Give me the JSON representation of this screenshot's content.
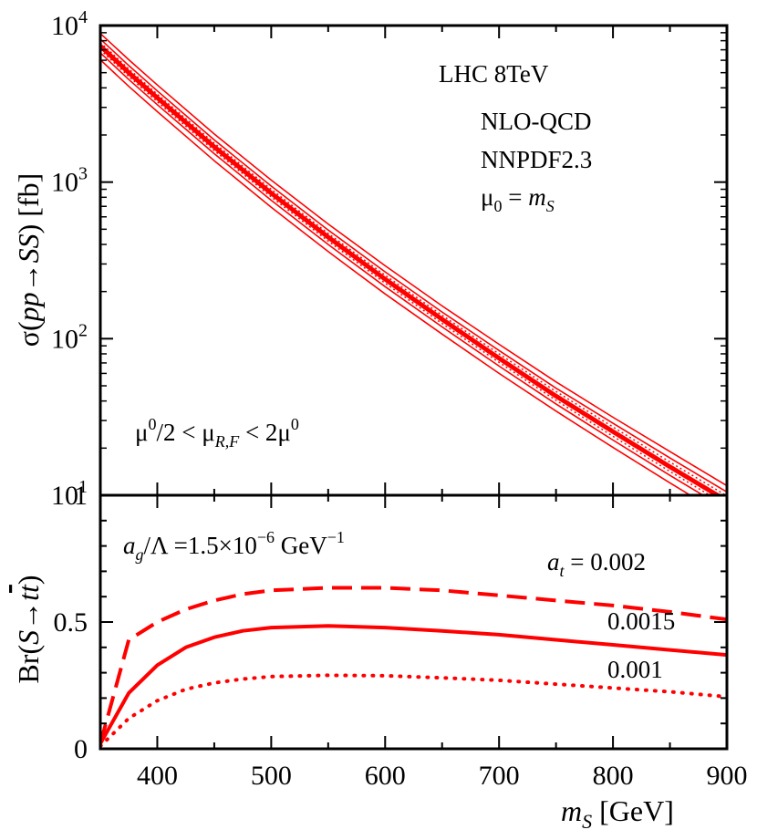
{
  "chart_data": [
    {
      "type": "line",
      "panel": "top",
      "yscale": "log",
      "xlim": [
        350,
        900
      ],
      "ylim": [
        10,
        10000
      ],
      "ylabel_parts": {
        "sigma": "σ(",
        "process": "pp→SS",
        "unit": ") [fb]"
      },
      "ytick_values": [
        10,
        100,
        1000,
        10000
      ],
      "ytick_exponents": [
        "1",
        "2",
        "3",
        "4"
      ],
      "ytick_base": "10",
      "annotations": {
        "collider": "LHC 8TeV",
        "order": "NLO-QCD",
        "pdf": "NNPDF2.3",
        "scale_mu": "μ",
        "scale_sub": "0",
        "scale_eq": " = ",
        "scale_m": "m",
        "scale_msub": "S",
        "band_mu_a": "μ",
        "band_sup_a": "0",
        "band_mid": "/2 < μ",
        "band_sub": "R,F",
        "band_end": " < 2μ",
        "band_sup_b": "0"
      },
      "x": [
        350,
        375,
        400,
        450,
        500,
        550,
        600,
        650,
        700,
        750,
        800,
        850,
        900
      ],
      "series": [
        {
          "name": "central (μ0 = mS)",
          "style": "thick-solid",
          "values": [
            7400,
            5000,
            3450,
            1680,
            850,
            445,
            240,
            133,
            75,
            43,
            25.5,
            15.2,
            9.2
          ]
        },
        {
          "name": "scale band upper",
          "style": "thin-solid",
          "values": [
            8900,
            6050,
            4170,
            2030,
            1030,
            540,
            292,
            162,
            92,
            53,
            31.5,
            19,
            11.5
          ]
        },
        {
          "name": "scale band lower",
          "style": "thin-solid",
          "values": [
            6050,
            4090,
            2820,
            1370,
            690,
            360,
            193,
            107,
            60,
            34.5,
            20.2,
            12,
            7.2
          ]
        },
        {
          "name": "variation upper 2",
          "style": "thin-solid",
          "values": [
            8200,
            5550,
            3820,
            1860,
            944,
            494,
            267,
            148,
            84,
            48.3,
            28.8,
            17.3,
            10.5
          ]
        },
        {
          "name": "variation lower 2",
          "style": "thin-solid",
          "values": [
            6700,
            4520,
            3120,
            1520,
            765,
            400,
            215,
            119,
            66.8,
            38.3,
            22.5,
            13.4,
            8.1
          ]
        },
        {
          "name": "PDF band upper",
          "style": "dotted",
          "values": [
            7800,
            5280,
            3640,
            1775,
            899,
            470,
            254,
            141,
            80,
            46,
            27.3,
            16.3,
            9.9
          ]
        },
        {
          "name": "PDF band lower",
          "style": "dotted",
          "values": [
            7000,
            4730,
            3260,
            1590,
            804,
            420,
            226,
            125,
            70.6,
            40.4,
            23.8,
            14.2,
            8.6
          ]
        }
      ]
    },
    {
      "type": "line",
      "panel": "bottom",
      "xlim": [
        350,
        900
      ],
      "ylim": [
        0,
        1
      ],
      "xticks": [
        400,
        500,
        600,
        700,
        800,
        900
      ],
      "yticks": [
        0,
        0.5
      ],
      "xlabel_parts": {
        "m": "m",
        "sub": "S",
        "unit": " [GeV]"
      },
      "ylabel_parts": {
        "pre": "Br(",
        "s": "S",
        "arrow": "→",
        "t": "t",
        "tbar": "t",
        "post": ")"
      },
      "ytick_labels": [
        "0",
        "0.5",
        "1"
      ],
      "coupling_label": {
        "a": "a",
        "sub": "g",
        "mid": "/Λ =1.5×10",
        "exp": "−6",
        "unit": " GeV",
        "unit_exp": "−1"
      },
      "at_label": {
        "a": "a",
        "sub": "t",
        "eq": " = 0.002"
      },
      "x": [
        350,
        375,
        400,
        425,
        450,
        475,
        500,
        550,
        600,
        650,
        700,
        750,
        800,
        850,
        900
      ],
      "series": [
        {
          "name": "a_t = 0.002",
          "label": "0.002",
          "style": "dashed",
          "values": [
            0.02,
            0.43,
            0.5,
            0.55,
            0.585,
            0.61,
            0.625,
            0.635,
            0.635,
            0.625,
            0.605,
            0.585,
            0.565,
            0.54,
            0.51
          ]
        },
        {
          "name": "a_t = 0.0015",
          "label": "0.0015",
          "style": "solid",
          "values": [
            0.02,
            0.22,
            0.33,
            0.4,
            0.44,
            0.465,
            0.478,
            0.485,
            0.478,
            0.465,
            0.45,
            0.43,
            0.41,
            0.39,
            0.37
          ]
        },
        {
          "name": "a_t = 0.001",
          "label": "0.001",
          "style": "dotted",
          "values": [
            0.01,
            0.12,
            0.19,
            0.235,
            0.26,
            0.275,
            0.285,
            0.29,
            0.288,
            0.28,
            0.27,
            0.255,
            0.24,
            0.225,
            0.205
          ]
        }
      ]
    }
  ]
}
